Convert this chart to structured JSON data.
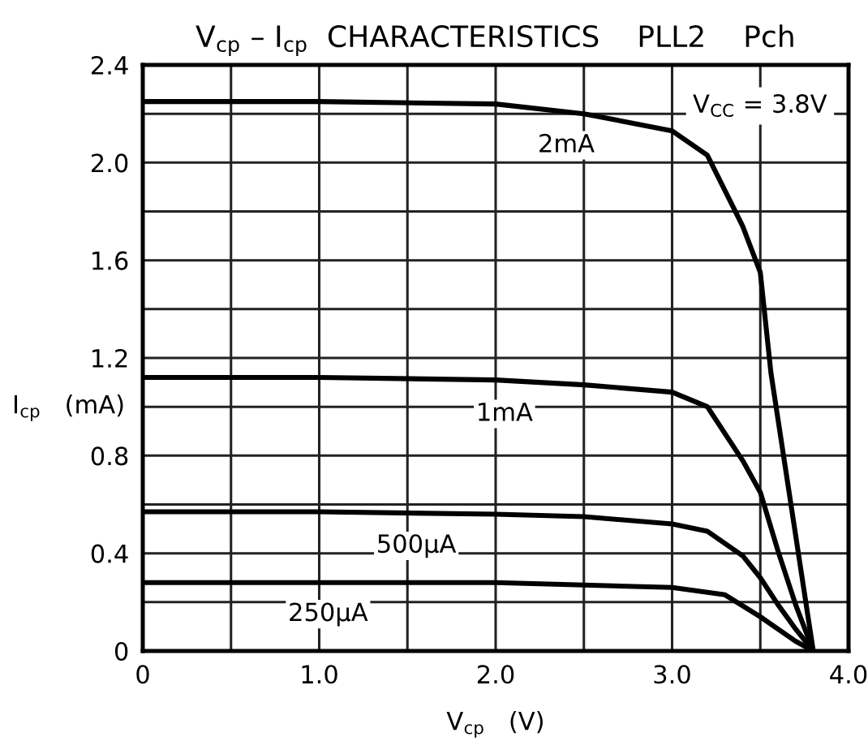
{
  "chart_data": {
    "type": "line",
    "title": "V$_{cp}$ – I$_{cp}$  CHARACTERISTICS    PLL2    Pch",
    "xlabel": "V$_{cp}$   (V)",
    "ylabel": "I$_{cp}$   (mA)",
    "xlim": [
      0,
      4.0
    ],
    "ylim": [
      0,
      2.4
    ],
    "xticks": [
      0,
      {
        "value": 0.5,
        "label": null
      },
      {
        "value": 1.0,
        "label": "1.0"
      },
      {
        "value": 1.5,
        "label": null
      },
      {
        "value": 2.0,
        "label": "2.0"
      },
      {
        "value": 2.5,
        "label": null
      },
      {
        "value": 3.0,
        "label": "3.0"
      },
      {
        "value": 3.5,
        "label": null
      },
      {
        "value": 4.0,
        "label": "4.0"
      }
    ],
    "yticks": [
      0,
      {
        "value": 0.2,
        "label": null
      },
      0.4,
      {
        "value": 0.6,
        "label": null
      },
      0.8,
      {
        "value": 1.0,
        "label": null
      },
      1.2,
      {
        "value": 1.4,
        "label": null
      },
      1.6,
      {
        "value": 1.8,
        "label": null
      },
      {
        "value": 2.0,
        "label": "2.0"
      },
      {
        "value": 2.2,
        "label": null
      },
      2.4
    ],
    "grid": true,
    "line_style": "solid",
    "series": [
      {
        "color": "#000000",
        "x": [
          0,
          1.0,
          2.0,
          2.5,
          3.0,
          3.2,
          3.4,
          3.5,
          3.56,
          3.8
        ],
        "values": [
          2.25,
          2.25,
          2.24,
          2.2,
          2.13,
          2.03,
          1.74,
          1.55,
          1.14,
          0
        ]
      },
      {
        "color": "#000000",
        "x": [
          0,
          1.0,
          2.0,
          2.5,
          3.0,
          3.2,
          3.4,
          3.5,
          3.6,
          3.7,
          3.8
        ],
        "values": [
          1.12,
          1.12,
          1.11,
          1.09,
          1.06,
          1.0,
          0.78,
          0.65,
          0.41,
          0.19,
          0
        ]
      },
      {
        "color": "#000000",
        "x": [
          0,
          1.0,
          2.0,
          2.5,
          3.0,
          3.2,
          3.4,
          3.5,
          3.6,
          3.7,
          3.8
        ],
        "values": [
          0.57,
          0.57,
          0.56,
          0.55,
          0.52,
          0.49,
          0.39,
          0.3,
          0.19,
          0.09,
          0
        ]
      },
      {
        "color": "#000000",
        "x": [
          0,
          1.0,
          2.0,
          2.5,
          3.0,
          3.3,
          3.5,
          3.7,
          3.8
        ],
        "values": [
          0.28,
          0.28,
          0.28,
          0.27,
          0.26,
          0.23,
          0.14,
          0.04,
          0
        ]
      }
    ],
    "annotations": [
      {
        "text": "2mA",
        "x": 2.4,
        "y": 2.2
      },
      {
        "text": "1mA",
        "x": 2.05,
        "y": 1.1
      },
      {
        "text": "500μA",
        "x": 1.55,
        "y": 0.56
      },
      {
        "text": "250μA",
        "x": 1.05,
        "y": 0.28
      },
      "V$_{CC}$ = 3.8V"
    ]
  }
}
